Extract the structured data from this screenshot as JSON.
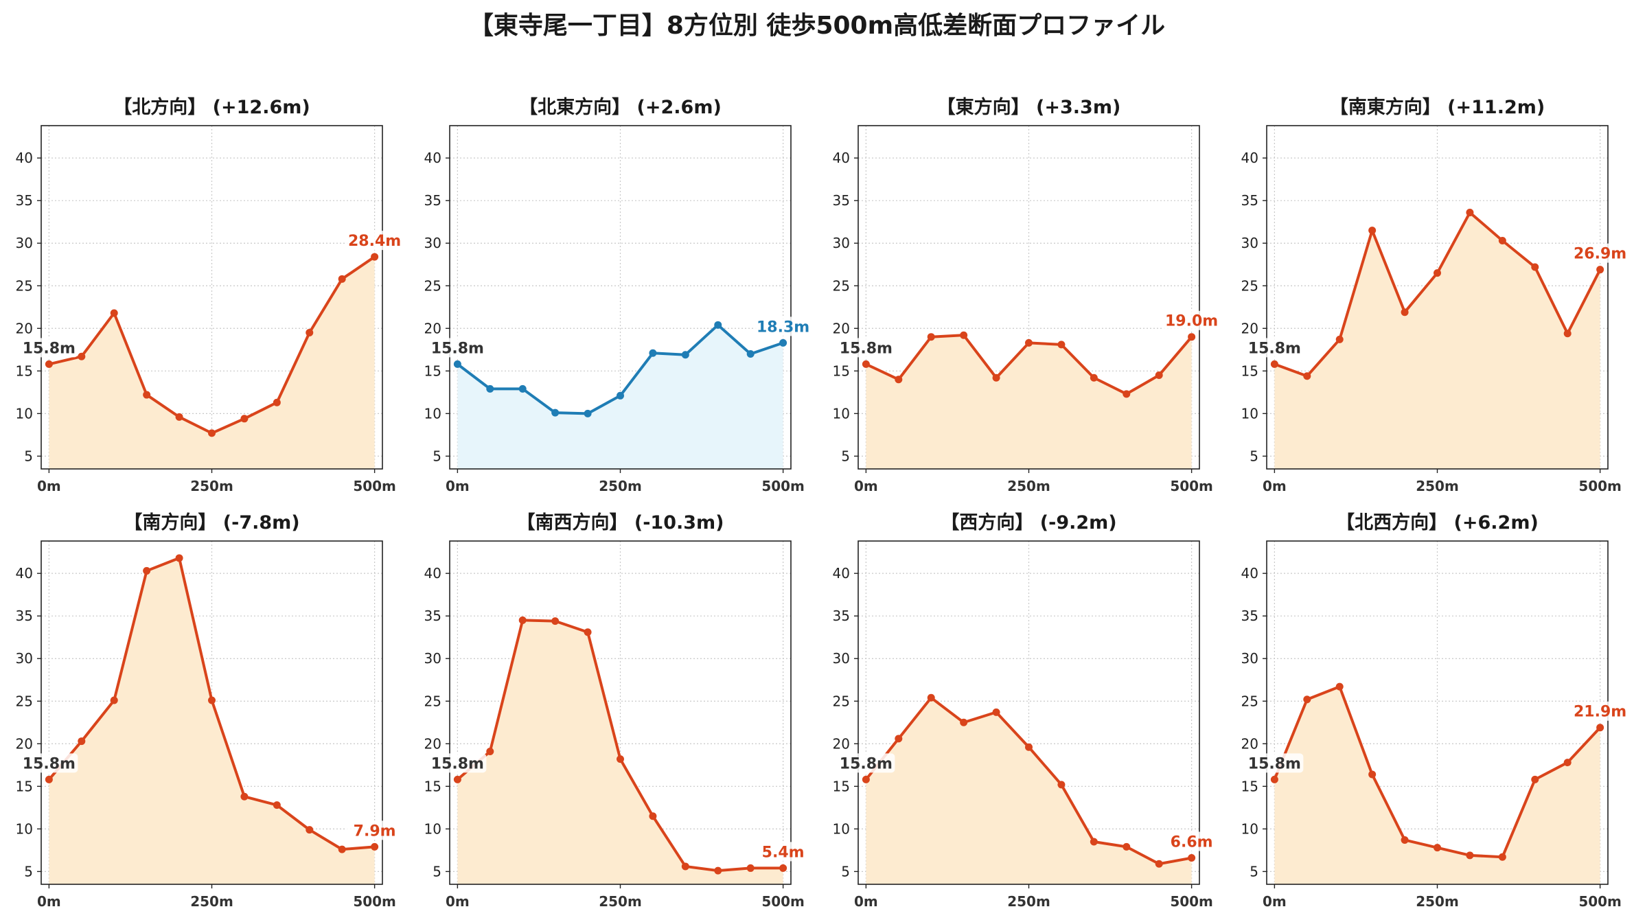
{
  "title": "【東寺尾一丁目】8方位別 徒歩500m高低差断面プロファイル",
  "colors": {
    "descent_line": "#d9441b",
    "descent_fill": "#fdebd0",
    "ascent_line": "#1f7db5",
    "ascent_fill": "#e7f5fb",
    "start_label": "#333333",
    "grid": "#c8c8c8"
  },
  "chart_data": [
    {
      "type": "area",
      "title": "【北方向】 (+12.6m)",
      "style": "descent",
      "x": [
        0,
        50,
        100,
        150,
        200,
        250,
        300,
        350,
        400,
        450,
        500
      ],
      "values": [
        15.8,
        16.7,
        21.8,
        12.2,
        9.6,
        7.7,
        9.4,
        11.3,
        19.5,
        25.8,
        28.4
      ],
      "start_label": "15.8m",
      "end_label": "28.4m",
      "xticks": [
        0,
        250,
        500
      ],
      "xtick_labels": [
        "0m",
        "250m",
        "500m"
      ],
      "yticks": [
        5,
        10,
        15,
        20,
        25,
        30,
        35,
        40
      ],
      "ylim": [
        3.5,
        43.8
      ],
      "xlim": [
        -12,
        512
      ],
      "grid": true
    },
    {
      "type": "area",
      "title": "【北東方向】 (+2.6m)",
      "style": "ascent",
      "x": [
        0,
        50,
        100,
        150,
        200,
        250,
        300,
        350,
        400,
        450,
        500
      ],
      "values": [
        15.8,
        12.9,
        12.9,
        10.1,
        10.0,
        12.1,
        17.1,
        16.9,
        20.4,
        17.0,
        18.3
      ],
      "start_label": "15.8m",
      "end_label": "18.3m",
      "xticks": [
        0,
        250,
        500
      ],
      "xtick_labels": [
        "0m",
        "250m",
        "500m"
      ],
      "yticks": [
        5,
        10,
        15,
        20,
        25,
        30,
        35,
        40
      ],
      "ylim": [
        3.5,
        43.8
      ],
      "xlim": [
        -12,
        512
      ],
      "grid": true
    },
    {
      "type": "area",
      "title": "【東方向】 (+3.3m)",
      "style": "descent",
      "x": [
        0,
        50,
        100,
        150,
        200,
        250,
        300,
        350,
        400,
        450,
        500
      ],
      "values": [
        15.8,
        14.0,
        19.0,
        19.2,
        14.2,
        18.3,
        18.1,
        14.2,
        12.3,
        14.5,
        19.0
      ],
      "start_label": "15.8m",
      "end_label": "19.0m",
      "xticks": [
        0,
        250,
        500
      ],
      "xtick_labels": [
        "0m",
        "250m",
        "500m"
      ],
      "yticks": [
        5,
        10,
        15,
        20,
        25,
        30,
        35,
        40
      ],
      "ylim": [
        3.5,
        43.8
      ],
      "xlim": [
        -12,
        512
      ],
      "grid": true
    },
    {
      "type": "area",
      "title": "【南東方向】 (+11.2m)",
      "style": "descent",
      "x": [
        0,
        50,
        100,
        150,
        200,
        250,
        300,
        350,
        400,
        450,
        500
      ],
      "values": [
        15.8,
        14.4,
        18.7,
        31.5,
        21.9,
        26.5,
        33.6,
        30.3,
        27.2,
        19.4,
        26.9
      ],
      "start_label": "15.8m",
      "end_label": "26.9m",
      "xticks": [
        0,
        250,
        500
      ],
      "xtick_labels": [
        "0m",
        "250m",
        "500m"
      ],
      "yticks": [
        5,
        10,
        15,
        20,
        25,
        30,
        35,
        40
      ],
      "ylim": [
        3.5,
        43.8
      ],
      "xlim": [
        -12,
        512
      ],
      "grid": true
    },
    {
      "type": "area",
      "title": "【南方向】 (-7.8m)",
      "style": "descent",
      "x": [
        0,
        50,
        100,
        150,
        200,
        250,
        300,
        350,
        400,
        450,
        500
      ],
      "values": [
        15.8,
        20.3,
        25.1,
        40.3,
        41.8,
        25.1,
        13.8,
        12.8,
        9.9,
        7.6,
        7.9
      ],
      "start_label": "15.8m",
      "end_label": "7.9m",
      "xticks": [
        0,
        250,
        500
      ],
      "xtick_labels": [
        "0m",
        "250m",
        "500m"
      ],
      "yticks": [
        5,
        10,
        15,
        20,
        25,
        30,
        35,
        40
      ],
      "ylim": [
        3.5,
        43.8
      ],
      "xlim": [
        -12,
        512
      ],
      "grid": true
    },
    {
      "type": "area",
      "title": "【南西方向】 (-10.3m)",
      "style": "descent",
      "x": [
        0,
        50,
        100,
        150,
        200,
        250,
        300,
        350,
        400,
        450,
        500
      ],
      "values": [
        15.8,
        19.1,
        34.5,
        34.4,
        33.1,
        18.2,
        11.5,
        5.6,
        5.1,
        5.4,
        5.4
      ],
      "start_label": "15.8m",
      "end_label": "5.4m",
      "xticks": [
        0,
        250,
        500
      ],
      "xtick_labels": [
        "0m",
        "250m",
        "500m"
      ],
      "yticks": [
        5,
        10,
        15,
        20,
        25,
        30,
        35,
        40
      ],
      "ylim": [
        3.5,
        43.8
      ],
      "xlim": [
        -12,
        512
      ],
      "grid": true
    },
    {
      "type": "area",
      "title": "【西方向】 (-9.2m)",
      "style": "descent",
      "x": [
        0,
        50,
        100,
        150,
        200,
        250,
        300,
        350,
        400,
        450,
        500
      ],
      "values": [
        15.8,
        20.6,
        25.4,
        22.5,
        23.7,
        19.6,
        15.2,
        8.5,
        7.9,
        5.9,
        6.6
      ],
      "start_label": "15.8m",
      "end_label": "6.6m",
      "xticks": [
        0,
        250,
        500
      ],
      "xtick_labels": [
        "0m",
        "250m",
        "500m"
      ],
      "yticks": [
        5,
        10,
        15,
        20,
        25,
        30,
        35,
        40
      ],
      "ylim": [
        3.5,
        43.8
      ],
      "xlim": [
        -12,
        512
      ],
      "grid": true
    },
    {
      "type": "area",
      "title": "【北西方向】 (+6.2m)",
      "style": "descent",
      "x": [
        0,
        50,
        100,
        150,
        200,
        250,
        300,
        350,
        400,
        450,
        500
      ],
      "values": [
        15.8,
        25.2,
        26.7,
        16.4,
        8.7,
        7.8,
        6.9,
        6.7,
        15.8,
        17.8,
        21.9
      ],
      "start_label": "15.8m",
      "end_label": "21.9m",
      "xticks": [
        0,
        250,
        500
      ],
      "xtick_labels": [
        "0m",
        "250m",
        "500m"
      ],
      "yticks": [
        5,
        10,
        15,
        20,
        25,
        30,
        35,
        40
      ],
      "ylim": [
        3.5,
        43.8
      ],
      "xlim": [
        -12,
        512
      ],
      "grid": true
    }
  ]
}
